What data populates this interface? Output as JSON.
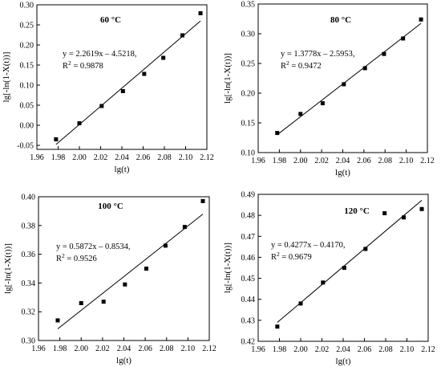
{
  "chart_data": [
    {
      "type": "scatter",
      "title": "60 °C",
      "xlabel": "lg(t)",
      "ylabel": "lg[-ln(1-X(t))]",
      "xlim": [
        1.96,
        2.12
      ],
      "ylim": [
        -0.06,
        0.3
      ],
      "xticks": [
        "1.96",
        "1.98",
        "2.00",
        "2.02",
        "2.04",
        "2.06",
        "2.08",
        "2.10",
        "2.12"
      ],
      "yticks": [
        "-0.05",
        "0.00",
        "0.05",
        "0.10",
        "0.15",
        "0.20",
        "0.25",
        "0.30"
      ],
      "grid": false,
      "series": [
        {
          "x": [
            1.978,
            2.0,
            2.021,
            2.041,
            2.061,
            2.079,
            2.097,
            2.114
          ],
          "y": [
            -0.035,
            0.005,
            0.048,
            0.085,
            0.128,
            0.168,
            0.224,
            0.279
          ]
        }
      ],
      "fit": {
        "slope": 2.2619,
        "intercept": -4.5218,
        "x_range": [
          1.978,
          2.114
        ]
      },
      "equation": "y = 2.2619x – 4.5218,",
      "r2_label": "R",
      "r2_value": " = 0.9878"
    },
    {
      "type": "scatter",
      "title": "80 °C",
      "xlabel": "lg(t)",
      "ylabel": "lg[-ln(1-X(t))]",
      "xlim": [
        1.96,
        2.12
      ],
      "ylim": [
        0.1,
        0.35
      ],
      "xticks": [
        "1.96",
        "1.98",
        "2.00",
        "2.02",
        "2.04",
        "2.06",
        "2.08",
        "2.10",
        "2.12"
      ],
      "yticks": [
        "0.10",
        "0.15",
        "0.20",
        "0.25",
        "0.30",
        "0.35"
      ],
      "grid": false,
      "series": [
        {
          "x": [
            1.978,
            2.0,
            2.021,
            2.041,
            2.061,
            2.079,
            2.097,
            2.114
          ],
          "y": [
            0.133,
            0.165,
            0.183,
            0.215,
            0.242,
            0.266,
            0.292,
            0.324
          ]
        }
      ],
      "fit": {
        "slope": 1.3778,
        "intercept": -2.5953,
        "x_range": [
          1.978,
          2.114
        ]
      },
      "equation": "y = 1.3778x – 2.5953,",
      "r2_label": "R",
      "r2_value": " = 0.9472"
    },
    {
      "type": "scatter",
      "title": "100 °C",
      "xlabel": "lg(t)",
      "ylabel": "lg[-ln(1-X(t))]",
      "xlim": [
        1.96,
        2.12
      ],
      "ylim": [
        0.3,
        0.4
      ],
      "xticks": [
        "1.96",
        "1.98",
        "2.00",
        "2.02",
        "2.04",
        "2.06",
        "2.08",
        "2.10",
        "2.12"
      ],
      "yticks": [
        "0.30",
        "0.32",
        "0.34",
        "0.36",
        "0.38",
        "0.40"
      ],
      "grid": false,
      "series": [
        {
          "x": [
            1.978,
            2.0,
            2.021,
            2.041,
            2.061,
            2.079,
            2.097,
            2.114
          ],
          "y": [
            0.314,
            0.326,
            0.327,
            0.339,
            0.35,
            0.366,
            0.379,
            0.397
          ]
        }
      ],
      "fit": {
        "slope": 0.5872,
        "intercept": -0.8534,
        "x_range": [
          1.978,
          2.114
        ]
      },
      "equation": "y = 0.5872x – 0.8534,",
      "r2_label": "R",
      "r2_value": " = 0.9526"
    },
    {
      "type": "scatter",
      "title": "120 °C",
      "xlabel": "lg(t)",
      "ylabel": "lg[-ln(1-X(t))]",
      "xlim": [
        1.96,
        2.12
      ],
      "ylim": [
        0.42,
        0.49
      ],
      "xticks": [
        "1.96",
        "1.98",
        "2.00",
        "2.02",
        "2.04",
        "2.06",
        "2.08",
        "2.10",
        "2.12"
      ],
      "yticks": [
        "0.42",
        "0.43",
        "0.44",
        "0.45",
        "0.46",
        "0.47",
        "0.48",
        "0.49"
      ],
      "grid": false,
      "series": [
        {
          "x": [
            1.978,
            2.0,
            2.021,
            2.041,
            2.061,
            2.079,
            2.097,
            2.114
          ],
          "y": [
            0.427,
            0.438,
            0.448,
            0.455,
            0.464,
            0.481,
            0.479,
            0.483
          ]
        }
      ],
      "fit": {
        "slope": 0.4277,
        "intercept": -0.417,
        "x_range": [
          1.978,
          2.114
        ]
      },
      "equation": "y = 0.4277x – 0.4170,",
      "r2_label": "R",
      "r2_value": " = 0.9679"
    }
  ]
}
